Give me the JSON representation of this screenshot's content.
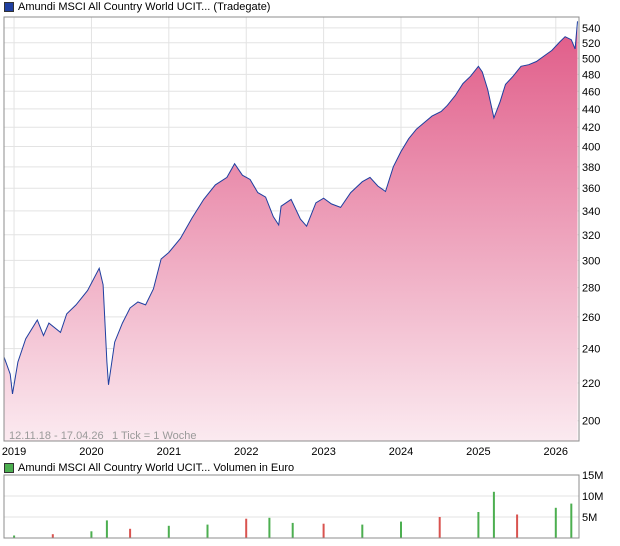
{
  "price_legend": {
    "label": "Amundi MSCI All Country World UCIT... (Tradegate)",
    "swatch_color": "#1f3fa0"
  },
  "volume_legend": {
    "label": "Amundi MSCI All Country World UCIT... Volumen in Euro",
    "swatch_color": "#4caf50"
  },
  "range_note": "12.11.18 - 17.04.26",
  "tick_note": "1 Tick = 1 Woche",
  "chart_data": [
    {
      "type": "area",
      "title": "Amundi MSCI All Country World UCIT... (Tradegate)",
      "y_scale": "log",
      "ylim": [
        190,
        555
      ],
      "xlim": [
        2018.87,
        2026.3
      ],
      "y_ticks": [
        200,
        220,
        240,
        260,
        280,
        300,
        320,
        340,
        360,
        380,
        400,
        420,
        440,
        460,
        480,
        500,
        520,
        540
      ],
      "x_ticks": [
        2019,
        2020,
        2021,
        2022,
        2023,
        2024,
        2025,
        2026
      ],
      "grid": true,
      "line_color": "#1f3fa0",
      "fill_color_top": "#e05a87",
      "fill_color_bottom": "#fbeaf0",
      "series": [
        {
          "x": [
            2018.87,
            2018.95,
            2018.98,
            2019.05,
            2019.15,
            2019.3,
            2019.38,
            2019.45,
            2019.6,
            2019.68,
            2019.8,
            2019.95,
            2020.1,
            2020.15,
            2020.2,
            2020.22,
            2020.3,
            2020.4,
            2020.5,
            2020.6,
            2020.7,
            2020.8,
            2020.9,
            2021.0,
            2021.15,
            2021.3,
            2021.45,
            2021.6,
            2021.75,
            2021.85,
            2021.95,
            2022.05,
            2022.15,
            2022.25,
            2022.35,
            2022.42,
            2022.45,
            2022.58,
            2022.7,
            2022.78,
            2022.9,
            2023.0,
            2023.1,
            2023.22,
            2023.35,
            2023.5,
            2023.6,
            2023.7,
            2023.8,
            2023.9,
            2024.0,
            2024.1,
            2024.2,
            2024.3,
            2024.4,
            2024.52,
            2024.6,
            2024.7,
            2024.8,
            2024.9,
            2025.0,
            2025.05,
            2025.12,
            2025.2,
            2025.28,
            2025.35,
            2025.45,
            2025.55,
            2025.65,
            2025.75,
            2025.85,
            2025.95,
            2026.05,
            2026.12,
            2026.2,
            2026.25,
            2026.28
          ],
          "values": [
            235,
            225,
            214,
            232,
            246,
            258,
            248,
            256,
            250,
            262,
            268,
            278,
            294,
            282,
            232,
            219,
            244,
            256,
            266,
            270,
            268,
            279,
            301,
            306,
            317,
            334,
            350,
            363,
            370,
            383,
            372,
            368,
            356,
            352,
            335,
            328,
            344,
            350,
            333,
            327,
            347,
            351,
            346,
            343,
            356,
            366,
            370,
            362,
            357,
            380,
            395,
            408,
            418,
            425,
            432,
            437,
            444,
            455,
            469,
            478,
            490,
            483,
            462,
            430,
            448,
            468,
            478,
            490,
            492,
            496,
            503,
            510,
            521,
            528,
            524,
            512,
            549
          ]
        }
      ]
    },
    {
      "type": "bar",
      "title": "Amundi MSCI All Country World UCIT... Volumen in Euro",
      "ylim": [
        0,
        15
      ],
      "y_ticks": [
        "15M",
        "10M",
        "5M"
      ],
      "xlim": [
        2018.87,
        2026.3
      ],
      "up_color": "#4caf50",
      "down_color": "#d9534f",
      "x": [
        2019.0,
        2019.5,
        2020.0,
        2020.2,
        2020.5,
        2021.0,
        2021.5,
        2022.0,
        2022.3,
        2022.6,
        2023.0,
        2023.5,
        2024.0,
        2024.5,
        2025.0,
        2025.2,
        2025.5,
        2026.0,
        2026.2
      ],
      "values": [
        0.6,
        0.9,
        1.6,
        4.2,
        2.2,
        2.9,
        3.2,
        4.6,
        4.8,
        3.6,
        3.4,
        3.2,
        3.9,
        5.0,
        6.2,
        11.0,
        5.6,
        7.2,
        8.2
      ]
    }
  ]
}
